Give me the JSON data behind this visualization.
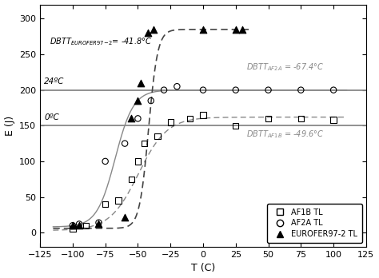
{
  "xlabel": "T (C)",
  "ylabel": "E (J)",
  "xlim": [
    -125,
    125
  ],
  "ylim": [
    -20,
    320
  ],
  "xticks": [
    -125,
    -100,
    -75,
    -50,
    -25,
    0,
    25,
    50,
    75,
    100,
    125
  ],
  "yticks": [
    0,
    50,
    100,
    150,
    200,
    250,
    300
  ],
  "AF1B_x": [
    -100,
    -90,
    -75,
    -65,
    -55,
    -50,
    -45,
    -35,
    -25,
    -10,
    0,
    25,
    50,
    75,
    100
  ],
  "AF1B_y": [
    5,
    10,
    40,
    45,
    75,
    100,
    125,
    135,
    155,
    160,
    165,
    150,
    160,
    160,
    158
  ],
  "AF2A_x": [
    -100,
    -95,
    -80,
    -75,
    -60,
    -50,
    -40,
    -30,
    -20,
    0,
    25,
    50,
    75,
    100
  ],
  "AF2A_y": [
    10,
    12,
    14,
    100,
    125,
    160,
    185,
    200,
    205,
    200,
    200,
    200,
    200,
    200
  ],
  "EUROFER_x": [
    -100,
    -95,
    -80,
    -60,
    -55,
    -50,
    -48,
    -42,
    -38,
    0,
    25,
    30
  ],
  "EUROFER_y": [
    10,
    10,
    12,
    22,
    160,
    185,
    210,
    280,
    285,
    285,
    285,
    285
  ],
  "hline_24C": 200,
  "hline_0C": 150,
  "label_24C": "24ºC",
  "label_0C": "0ºC",
  "color_hline": "#888888",
  "color_af1b_curve": "#888888",
  "color_af2a_curve": "#888888",
  "color_euro_curve": "#444444",
  "background_color": "#ffffff"
}
